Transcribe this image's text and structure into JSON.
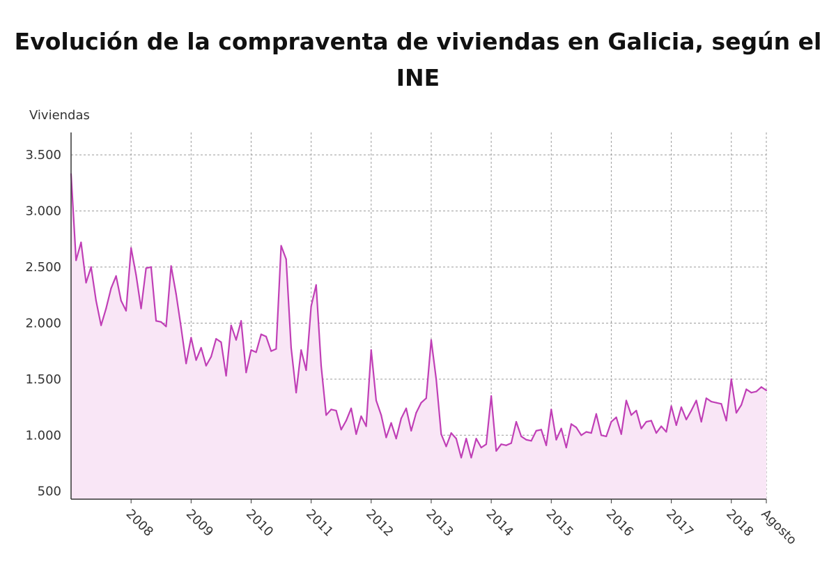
{
  "chart_data": {
    "type": "area",
    "title": "Evolución de la compraventa de viviendas en Galicia, según el INE",
    "ylabel": "Viviendas",
    "xlabel": "",
    "ylim": [
      430,
      3700
    ],
    "y_ticks": [
      500,
      1000,
      1500,
      2000,
      2500,
      3000,
      3500
    ],
    "y_tick_labels": [
      "500",
      "1.000",
      "1.500",
      "2.000",
      "2.500",
      "3.000",
      "3.500"
    ],
    "x_ticks": [
      {
        "label": "2008",
        "t": 12
      },
      {
        "label": "2009",
        "t": 24
      },
      {
        "label": "2010",
        "t": 36
      },
      {
        "label": "2011",
        "t": 48
      },
      {
        "label": "2012",
        "t": 60
      },
      {
        "label": "2013",
        "t": 72
      },
      {
        "label": "2014",
        "t": 84
      },
      {
        "label": "2015",
        "t": 96
      },
      {
        "label": "2016",
        "t": 108
      },
      {
        "label": "2017",
        "t": 120
      },
      {
        "label": "2018",
        "t": 132
      },
      {
        "label": "Agosto",
        "t": 139
      }
    ],
    "first_period": "2007-01",
    "last_period": "2018-08",
    "line_color": "#c03fb6",
    "fill_color": "#f9e6f6",
    "grid": true,
    "series": [
      {
        "values": [
          3330,
          2560,
          2720,
          2360,
          2500,
          2200,
          1980,
          2130,
          2310,
          2420,
          2200,
          2110,
          2670,
          2430,
          2130,
          2490,
          2500,
          2020,
          2010,
          1970,
          2510,
          2260,
          1960,
          1640,
          1870,
          1670,
          1780,
          1620,
          1700,
          1860,
          1830,
          1530,
          1980,
          1850,
          2020,
          1560,
          1760,
          1740,
          1900,
          1880,
          1750,
          1770,
          2690,
          2570,
          1780,
          1380,
          1760,
          1580,
          2150,
          2340,
          1620,
          1180,
          1230,
          1220,
          1050,
          1130,
          1240,
          1010,
          1170,
          1080,
          1760,
          1310,
          1180,
          980,
          1110,
          970,
          1150,
          1240,
          1040,
          1200,
          1290,
          1330,
          1850,
          1500,
          1010,
          900,
          1020,
          970,
          800,
          970,
          800,
          970,
          890,
          920,
          1350,
          860,
          920,
          910,
          930,
          1120,
          990,
          960,
          950,
          1040,
          1050,
          910,
          1230,
          960,
          1060,
          890,
          1100,
          1070,
          1000,
          1030,
          1020,
          1190,
          1000,
          990,
          1120,
          1160,
          1010,
          1310,
          1180,
          1220,
          1060,
          1120,
          1130,
          1020,
          1080,
          1030,
          1260,
          1090,
          1250,
          1140,
          1220,
          1310,
          1120,
          1330,
          1300,
          1290,
          1280,
          1130,
          1500,
          1200,
          1270,
          1410,
          1380,
          1390,
          1430,
          1400
        ]
      }
    ]
  }
}
